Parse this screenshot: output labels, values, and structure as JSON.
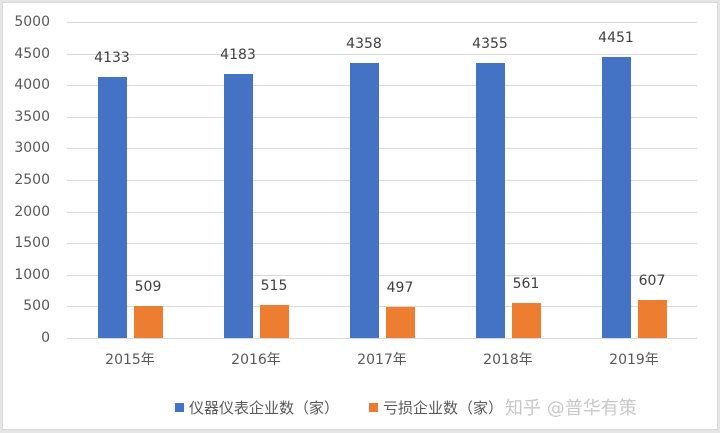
{
  "chart_data": {
    "type": "bar",
    "title": "",
    "xlabel": "",
    "ylabel": "",
    "ylim": [
      0,
      5000
    ],
    "yticks": [
      0,
      500,
      1000,
      1500,
      2000,
      2500,
      3000,
      3500,
      4000,
      4500,
      5000
    ],
    "grid": true,
    "legend_position": "bottom",
    "categories": [
      "2015年",
      "2016年",
      "2017年",
      "2018年",
      "2019年"
    ],
    "series": [
      {
        "name": "仪器仪表企业数（家）",
        "color": "#4472C4",
        "values": [
          4133,
          4183,
          4358,
          4355,
          4451
        ]
      },
      {
        "name": "亏损企业数（家）",
        "color": "#ED7D31",
        "values": [
          509,
          515,
          497,
          561,
          607
        ]
      }
    ]
  },
  "legend": {
    "items": [
      {
        "label": "仪器仪表企业数（家）",
        "color": "#4472C4"
      },
      {
        "label": "亏损企业数（家）",
        "color": "#ED7D31"
      }
    ]
  },
  "watermark": "知乎 @普华有策"
}
